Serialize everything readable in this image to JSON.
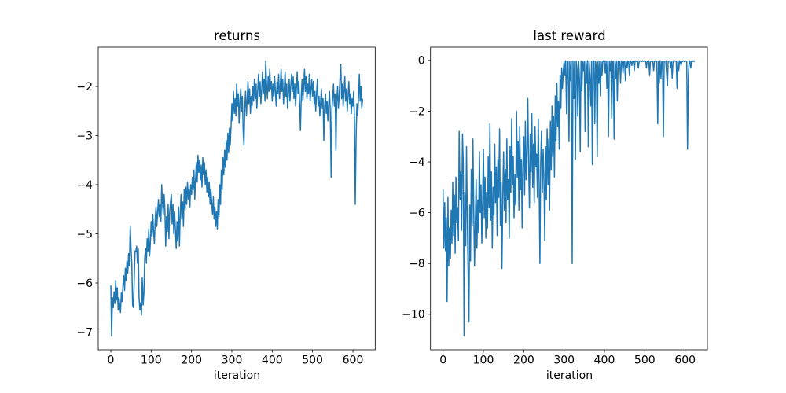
{
  "figure": {
    "background": "#ffffff"
  },
  "chart_data": [
    {
      "type": "line",
      "title": "returns",
      "xlabel": "iteration",
      "ylabel": "",
      "line_color": "#1f77b4",
      "line_width": 1.5,
      "grid": false,
      "legend": null,
      "xlim": [
        -31.2,
        655.2
      ],
      "ylim": [
        -7.36,
        -1.2
      ],
      "xticks": [
        0,
        100,
        200,
        300,
        400,
        500,
        600
      ],
      "xtick_labels": [
        "0",
        "100",
        "200",
        "300",
        "400",
        "500",
        "600"
      ],
      "yticks": [
        -2,
        -3,
        -4,
        -5,
        -6,
        -7
      ],
      "ytick_labels": [
        "−2",
        "−3",
        "−4",
        "−5",
        "−6",
        "−7"
      ],
      "x_start": 0,
      "x_step": 2,
      "values": [
        -6.05,
        -7.08,
        -6.3,
        -6.5,
        -6.18,
        -6.42,
        -5.95,
        -6.35,
        -6.1,
        -6.55,
        -6.3,
        -6.45,
        -6.6,
        -6.2,
        -6.38,
        -6.05,
        -5.85,
        -6.15,
        -5.7,
        -5.95,
        -5.55,
        -5.8,
        -5.4,
        -5.65,
        -4.85,
        -5.3,
        -5.6,
        -6.45,
        -6.5,
        -5.9,
        -5.35,
        -5.35,
        -5.25,
        -5.6,
        -5.3,
        -6.3,
        -6.55,
        -6.4,
        -6.65,
        -5.9,
        -6.45,
        -6.2,
        -5.5,
        -5.3,
        -5.6,
        -5.1,
        -5.35,
        -4.9,
        -5.45,
        -5.2,
        -4.75,
        -5.05,
        -4.6,
        -4.95,
        -5.2,
        -4.7,
        -4.45,
        -4.85,
        -4.55,
        -4.3,
        -4.65,
        -4.4,
        -4.75,
        -4.0,
        -4.35,
        -4.6,
        -4.2,
        -4.5,
        -5.25,
        -4.65,
        -4.95,
        -4.4,
        -5.1,
        -4.55,
        -4.35,
        -4.2,
        -4.8,
        -4.4,
        -5.0,
        -4.55,
        -4.9,
        -5.3,
        -4.75,
        -5.15,
        -4.45,
        -5.25,
        -4.6,
        -4.2,
        -4.7,
        -4.35,
        -4.85,
        -4.1,
        -4.5,
        -4.05,
        -4.4,
        -3.95,
        -4.3,
        -4.1,
        -4.45,
        -4.0,
        -4.2,
        -3.85,
        -4.1,
        -3.7,
        -4.3,
        -3.9,
        -3.55,
        -3.95,
        -3.4,
        -3.75,
        -3.5,
        -3.9,
        -3.6,
        -4.05,
        -3.45,
        -3.8,
        -3.55,
        -4.0,
        -3.7,
        -4.15,
        -3.85,
        -4.25,
        -3.95,
        -4.4,
        -4.1,
        -4.35,
        -4.6,
        -4.25,
        -4.7,
        -4.45,
        -4.85,
        -4.55,
        -4.9,
        -4.3,
        -4.65,
        -4.0,
        -4.4,
        -3.7,
        -4.1,
        -3.45,
        -3.8,
        -3.3,
        -3.65,
        -3.1,
        -3.5,
        -2.95,
        -3.35,
        -2.85,
        -3.2,
        -2.8,
        -2.35,
        -2.7,
        -2.1,
        -2.55,
        -2.25,
        -2.6,
        -1.95,
        -2.4,
        -2.15,
        -2.75,
        -2.3,
        -2.05,
        -2.5,
        -2.2,
        -2.9,
        -3.2,
        -2.45,
        -2.1,
        -2.6,
        -2.25,
        -1.9,
        -2.35,
        -2.05,
        -2.55,
        -2.2,
        -2.4,
        -2.0,
        -2.3,
        -1.85,
        -2.25,
        -1.95,
        -2.45,
        -2.1,
        -1.75,
        -2.2,
        -1.9,
        -2.35,
        -2.05,
        -1.7,
        -2.15,
        -1.85,
        -2.3,
        -1.48,
        -1.95,
        -2.25,
        -1.8,
        -2.1,
        -1.65,
        -2.05,
        -1.9,
        -2.3,
        -1.95,
        -2.2,
        -1.8,
        -2.1,
        -2.4,
        -1.9,
        -2.15,
        -1.75,
        -2.25,
        -2.0,
        -1.65,
        -2.1,
        -1.85,
        -2.35,
        -2.05,
        -1.7,
        -2.2,
        -1.95,
        -2.45,
        -2.15,
        -1.85,
        -2.3,
        -2.0,
        -1.75,
        -2.1,
        -1.8,
        -2.25,
        -1.95,
        -2.4,
        -2.05,
        -1.7,
        -2.15,
        -1.9,
        -2.35,
        -2.9,
        -2.2,
        -1.85,
        -2.3,
        -2.0,
        -1.65,
        -2.1,
        -1.8,
        -2.25,
        -1.95,
        -2.15,
        -1.75,
        -2.3,
        -2.05,
        -1.85,
        -2.2,
        -1.9,
        -2.35,
        -2.1,
        -2.5,
        -2.15,
        -1.85,
        -2.4,
        -2.2,
        -2.6,
        -2.3,
        -2.05,
        -2.45,
        -2.25,
        -3.1,
        -2.4,
        -2.15,
        -2.55,
        -2.3,
        -2.7,
        -2.35,
        -2.1,
        -2.5,
        -3.85,
        -2.45,
        -2.25,
        -1.95,
        -2.4,
        -2.15,
        -3.3,
        -2.3,
        -2.0,
        -2.45,
        -2.2,
        -1.85,
        -1.55,
        -2.25,
        -1.95,
        -2.4,
        -2.1,
        -1.8,
        -2.3,
        -2.05,
        -2.5,
        -2.2,
        -1.9,
        -2.35,
        -2.15,
        -2.55,
        -2.25,
        -2.4,
        -2.1,
        -2.7,
        -4.4,
        -3.0,
        -2.35,
        -2.6,
        -2.2,
        -1.75,
        -2.3,
        -2.0,
        -2.45,
        -2.25
      ]
    },
    {
      "type": "line",
      "title": "last reward",
      "xlabel": "iteration",
      "ylabel": "",
      "line_color": "#1f77b4",
      "line_width": 1.5,
      "grid": false,
      "legend": null,
      "xlim": [
        -31.2,
        655.2
      ],
      "ylim": [
        -11.4,
        0.52
      ],
      "xticks": [
        0,
        100,
        200,
        300,
        400,
        500,
        600
      ],
      "xtick_labels": [
        "0",
        "100",
        "200",
        "300",
        "400",
        "500",
        "600"
      ],
      "yticks": [
        0,
        -2,
        -4,
        -6,
        -8,
        -10
      ],
      "ytick_labels": [
        "0",
        "−2",
        "−4",
        "−6",
        "−8",
        "−10"
      ],
      "x_start": 0,
      "x_step": 2,
      "values": [
        -5.1,
        -7.4,
        -5.6,
        -7.5,
        -6.2,
        -9.5,
        -5.4,
        -8.1,
        -6.6,
        -7.8,
        -5.9,
        -7.2,
        -4.8,
        -6.9,
        -5.3,
        -7.6,
        -4.6,
        -6.4,
        -5.8,
        -7.1,
        -2.8,
        -5.5,
        -4.4,
        -6.7,
        -2.9,
        -4.1,
        -10.85,
        -5.2,
        -7.3,
        -3.4,
        -6.1,
        -8.3,
        -10.3,
        -5.7,
        -7.9,
        -4.3,
        -6.5,
        -3.1,
        -5.9,
        -8.1,
        -6.3,
        -4.7,
        -7.4,
        -5.5,
        -6.8,
        -3.6,
        -6.0,
        -4.9,
        -7.2,
        -5.6,
        -3.5,
        -6.2,
        -4.6,
        -7.0,
        -5.2,
        -6.6,
        -3.8,
        -5.8,
        -2.5,
        -6.3,
        -4.4,
        -7.4,
        -5.0,
        -6.1,
        -3.3,
        -5.6,
        -4.2,
        -6.9,
        -3.9,
        -5.4,
        -2.7,
        -6.5,
        -4.8,
        -8.2,
        -5.3,
        -3.6,
        -5.9,
        -4.3,
        -6.4,
        -3.1,
        -5.5,
        -4.7,
        -7.0,
        -3.4,
        -5.2,
        -2.3,
        -4.9,
        -3.8,
        -6.2,
        -4.5,
        -5.7,
        -2.0,
        -4.6,
        -3.2,
        -5.9,
        -2.6,
        -5.1,
        -3.9,
        -6.6,
        -4.2,
        -3.0,
        -5.3,
        -2.4,
        -4.7,
        -3.6,
        -1.5,
        -4.1,
        -5.8,
        -2.9,
        -4.4,
        -2.1,
        -5.0,
        -3.3,
        -5.6,
        -2.6,
        -4.2,
        -3.7,
        -5.4,
        -2.3,
        -4.8,
        -8.0,
        -4.0,
        -2.8,
        -5.2,
        -3.5,
        -4.6,
        -7.1,
        -3.4,
        -5.5,
        -2.7,
        -4.9,
        -3.1,
        -5.9,
        -2.4,
        -4.3,
        -1.8,
        -3.8,
        -2.2,
        -4.6,
        -1.4,
        -3.2,
        -0.9,
        -2.6,
        -1.6,
        -3.5,
        -0.6,
        -1.9,
        -0.3,
        -1.1,
        -0.4,
        -0.05,
        -0.6,
        -0.02,
        -2.1,
        -0.04,
        -0.03,
        -3.2,
        -0.05,
        -0.8,
        -0.03,
        -8.0,
        -0.04,
        -1.5,
        -0.02,
        -3.9,
        -0.05,
        -0.3,
        -2.2,
        -0.03,
        -0.7,
        -3.6,
        -0.04,
        -1.2,
        -0.05,
        -0.4,
        -0.03,
        -2.8,
        -0.05,
        -0.9,
        -0.02,
        -3.4,
        -0.04,
        -0.6,
        -1.8,
        -0.03,
        -4.1,
        -0.05,
        -0.02,
        -2.5,
        -0.04,
        -0.3,
        -3.8,
        -0.02,
        -0.9,
        -0.05,
        -1.4,
        -0.03,
        -0.6,
        -0.02,
        -0.04,
        -0.02,
        -0.5,
        -0.04,
        -1.1,
        -0.03,
        -3.0,
        -0.05,
        -0.4,
        -0.02,
        -2.3,
        -0.04,
        -0.03,
        -3.1,
        -0.05,
        -0.7,
        -0.02,
        -1.6,
        -0.03,
        -0.3,
        -0.05,
        -0.9,
        -0.02,
        -0.04,
        -0.5,
        -0.03,
        -0.05,
        -0.8,
        -0.02,
        -0.3,
        -0.04,
        -0.03,
        -0.6,
        -0.02,
        -0.05,
        -0.2,
        -0.03,
        -0.04,
        -0.4,
        -0.02,
        -0.03,
        -0.05,
        -0.02,
        -0.3,
        -0.04,
        -0.02,
        -0.03,
        -0.05,
        -0.02,
        -0.04,
        -0.03,
        -0.02,
        -0.04,
        -0.3,
        -0.03,
        -0.05,
        -0.02,
        -0.6,
        -0.03,
        -0.04,
        -0.02,
        -0.05,
        -0.4,
        -0.03,
        -0.02,
        -0.04,
        -0.03,
        -2.5,
        -0.05,
        -0.9,
        -0.02,
        -0.7,
        -0.03,
        -0.04,
        -3.0,
        -0.05,
        -0.03,
        -0.02,
        -0.5,
        -1.0,
        -0.04,
        -0.03,
        -0.02,
        -0.3,
        -0.05,
        -0.7,
        -0.02,
        -0.04,
        -0.03,
        -0.02,
        -0.05,
        -1.1,
        -0.03,
        -0.4,
        -0.02,
        -0.04,
        -0.2,
        -0.03,
        -0.05,
        -0.02,
        -0.04,
        -0.02,
        -0.03,
        -0.05,
        -3.5,
        -0.6,
        -0.04,
        -0.02,
        -0.3,
        -0.03,
        -0.05,
        -0.02,
        -0.04,
        -0.03
      ]
    }
  ]
}
